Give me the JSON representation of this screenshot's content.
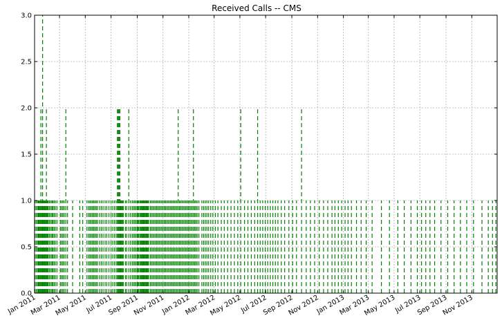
{
  "chart_data": {
    "type": "line",
    "title": "Received Calls -- CMS",
    "xlabel": "",
    "ylabel": "",
    "x_range": [
      "2011-01-01",
      "2013-12-31"
    ],
    "ylim": [
      0,
      3
    ],
    "grid": true,
    "line_style": "dashed",
    "colors": {
      "series": "#008000",
      "grid": "#b0b0b0",
      "axes": "#000000"
    },
    "x_ticks": [
      "Jan 2011",
      "Mar 2011",
      "May 2011",
      "Jul 2011",
      "Sep 2011",
      "Nov 2011",
      "Jan 2012",
      "Mar 2012",
      "May 2012",
      "Jul 2012",
      "Sep 2012",
      "Nov 2012",
      "Jan 2013",
      "Mar 2013",
      "May 2013",
      "Jul 2013",
      "Sep 2013",
      "Nov 2013"
    ],
    "x_tick_dates": [
      "2011-01-01",
      "2011-03-01",
      "2011-05-01",
      "2011-07-01",
      "2011-09-01",
      "2011-11-01",
      "2012-01-01",
      "2012-03-01",
      "2012-05-01",
      "2012-07-01",
      "2012-09-01",
      "2012-11-01",
      "2013-01-01",
      "2013-03-01",
      "2013-05-01",
      "2013-07-01",
      "2013-09-01",
      "2013-11-01"
    ],
    "y_ticks": [
      "0.0",
      "0.5",
      "1.0",
      "1.5",
      "2.0",
      "2.5",
      "3.0"
    ],
    "y_tick_values": [
      0,
      0.5,
      1.0,
      1.5,
      2.0,
      2.5,
      3.0
    ],
    "series": [
      {
        "dates": [
          "2011-01-02",
          "2011-01-05",
          "2011-01-08",
          "2011-01-10",
          "2011-01-12",
          "2011-01-14",
          "2011-01-16",
          "2011-01-18",
          "2011-01-20",
          "2011-01-21",
          "2011-01-23",
          "2011-01-25",
          "2011-01-27",
          "2011-01-29",
          "2011-01-31",
          "2011-02-02",
          "2011-02-05",
          "2011-02-08",
          "2011-02-11",
          "2011-02-13",
          "2011-02-16",
          "2011-02-19",
          "2011-02-23",
          "2011-03-03",
          "2011-03-06",
          "2011-03-09",
          "2011-03-12",
          "2011-03-16",
          "2011-03-20",
          "2011-04-01",
          "2011-04-18",
          "2011-04-25",
          "2011-05-05",
          "2011-05-09",
          "2011-05-12",
          "2011-05-15",
          "2011-05-18",
          "2011-05-21",
          "2011-05-24",
          "2011-05-27",
          "2011-05-30",
          "2011-06-04",
          "2011-06-08",
          "2011-06-12",
          "2011-06-17",
          "2011-06-21",
          "2011-06-26",
          "2011-07-01",
          "2011-07-05",
          "2011-07-09",
          "2011-07-13",
          "2011-07-16",
          "2011-07-18",
          "2011-07-20",
          "2011-07-22",
          "2011-07-24",
          "2011-07-26",
          "2011-07-28",
          "2011-07-30",
          "2011-08-04",
          "2011-08-07",
          "2011-08-12",
          "2011-08-16",
          "2011-08-20",
          "2011-08-23",
          "2011-08-26",
          "2011-08-29",
          "2011-09-01",
          "2011-09-03",
          "2011-09-05",
          "2011-09-08",
          "2011-09-10",
          "2011-09-12",
          "2011-09-14",
          "2011-09-16",
          "2011-09-18",
          "2011-09-20",
          "2011-09-22",
          "2011-09-24",
          "2011-09-26",
          "2011-09-28",
          "2011-10-02",
          "2011-10-05",
          "2011-10-08",
          "2011-10-11",
          "2011-10-14",
          "2011-10-17",
          "2011-10-20",
          "2011-10-23",
          "2011-10-26",
          "2011-10-29",
          "2011-11-01",
          "2011-11-04",
          "2011-11-07",
          "2011-11-10",
          "2011-11-13",
          "2011-11-16",
          "2011-11-19",
          "2011-11-22",
          "2011-11-25",
          "2011-11-28",
          "2011-12-01",
          "2011-12-04",
          "2011-12-07",
          "2011-12-10",
          "2011-12-13",
          "2011-12-16",
          "2011-12-19",
          "2011-12-22",
          "2011-12-25",
          "2011-12-28",
          "2011-12-31",
          "2012-01-03",
          "2012-01-06",
          "2012-01-09",
          "2012-01-12",
          "2012-01-15",
          "2012-01-18",
          "2012-01-21",
          "2012-01-25",
          "2012-02-01",
          "2012-02-05",
          "2012-02-09",
          "2012-02-13",
          "2012-02-17",
          "2012-02-22",
          "2012-02-27",
          "2012-03-04",
          "2012-03-10",
          "2012-03-18",
          "2012-03-25",
          "2012-04-02",
          "2012-04-10",
          "2012-04-18",
          "2012-04-26",
          "2012-05-03",
          "2012-05-12",
          "2012-05-20",
          "2012-05-28",
          "2012-06-05",
          "2012-06-12",
          "2012-06-18",
          "2012-06-24",
          "2012-06-30",
          "2012-07-06",
          "2012-07-12",
          "2012-07-18",
          "2012-07-24",
          "2012-07-30",
          "2012-08-07",
          "2012-08-15",
          "2012-08-25",
          "2012-09-03",
          "2012-09-12",
          "2012-09-24",
          "2012-10-05",
          "2012-10-15",
          "2012-10-25",
          "2012-11-05",
          "2012-11-15",
          "2012-11-25",
          "2012-12-05",
          "2012-12-12",
          "2012-12-20",
          "2012-12-28",
          "2013-01-05",
          "2013-01-12",
          "2013-01-20",
          "2013-02-01",
          "2013-02-12",
          "2013-02-24",
          "2013-03-10",
          "2013-04-01",
          "2013-04-20",
          "2013-05-10",
          "2013-05-25",
          "2013-06-10",
          "2013-06-25",
          "2013-07-05",
          "2013-07-15",
          "2013-07-25",
          "2013-08-05",
          "2013-08-20",
          "2013-09-05",
          "2013-09-20",
          "2013-10-05",
          "2013-10-20",
          "2013-11-05",
          "2013-11-25",
          "2013-12-10",
          "2013-12-20",
          "2013-12-28"
        ],
        "values": [
          1,
          1,
          1,
          1,
          1,
          1,
          2,
          1,
          3,
          1,
          1,
          1,
          1,
          2,
          1,
          1,
          1,
          1,
          1,
          1,
          1,
          1,
          1,
          1,
          1,
          1,
          1,
          2,
          1,
          1,
          1,
          1,
          1,
          1,
          1,
          1,
          1,
          1,
          1,
          1,
          1,
          1,
          1,
          1,
          1,
          1,
          1,
          1,
          1,
          1,
          1,
          2,
          2,
          2,
          2,
          1,
          1,
          1,
          1,
          1,
          1,
          2,
          1,
          1,
          1,
          1,
          1,
          1,
          1,
          1,
          1,
          1,
          1,
          1,
          1,
          1,
          1,
          1,
          1,
          1,
          1,
          1,
          1,
          1,
          1,
          1,
          1,
          1,
          1,
          1,
          1,
          1,
          1,
          1,
          1,
          1,
          1,
          1,
          1,
          1,
          1,
          1,
          1,
          2,
          1,
          1,
          1,
          1,
          1,
          1,
          1,
          1,
          1,
          1,
          1,
          2,
          1,
          1,
          1,
          1,
          1,
          1,
          1,
          1,
          1,
          1,
          1,
          1,
          1,
          1,
          1,
          1,
          1,
          1,
          1,
          2,
          1,
          1,
          1,
          1,
          2,
          1,
          1,
          1,
          1,
          1,
          1,
          1,
          1,
          1,
          1,
          1,
          1,
          1,
          2,
          1,
          1,
          1,
          1,
          1,
          1,
          1,
          1,
          1,
          1,
          1,
          1,
          1,
          1,
          1,
          1,
          1,
          1,
          1,
          1,
          1,
          1,
          1,
          1,
          1,
          1,
          1,
          1,
          1,
          1,
          1,
          1,
          1,
          1,
          1,
          1,
          1
        ]
      }
    ]
  }
}
